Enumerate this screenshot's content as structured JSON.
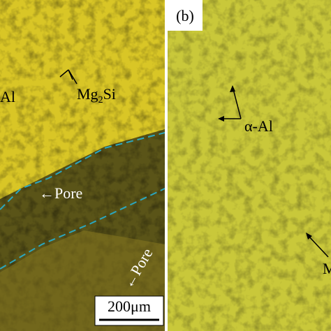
{
  "panel_a": {
    "labels": {
      "alpha_al": "Al",
      "mg2si_base": "Mg",
      "mg2si_sub": "2",
      "mg2si_rest": "Si",
      "pore": "←Pore",
      "pore_small": "←Pore"
    },
    "scale_bar": "200μm"
  },
  "panel_b": {
    "tag": "(b)",
    "labels": {
      "alpha_al": "α-Al",
      "mg2si_cut": "M"
    }
  }
}
